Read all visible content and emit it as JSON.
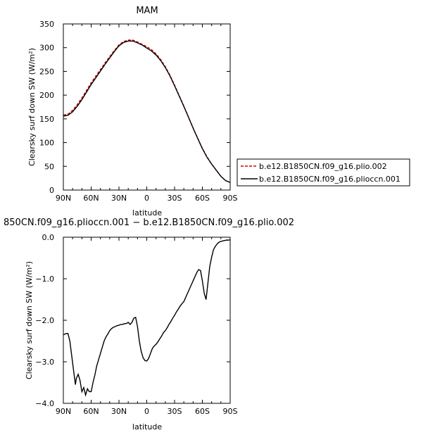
{
  "chart_data": [
    {
      "type": "line",
      "title": "MAM",
      "xlabel": "latitude",
      "ylabel": "Clearsky surf down SW (W/m²)",
      "xlim": [
        90,
        -90
      ],
      "ylim": [
        0,
        350
      ],
      "xticks": [
        90,
        60,
        30,
        0,
        -30,
        -60,
        -90
      ],
      "xtick_labels": [
        "90N",
        "60N",
        "30N",
        "0",
        "30S",
        "60S",
        "90S"
      ],
      "yticks": [
        0,
        50,
        100,
        150,
        200,
        250,
        300,
        350
      ],
      "ytick_labels": [
        "0",
        "50",
        "100",
        "150",
        "200",
        "250",
        "300",
        "350"
      ],
      "legend_position": "right",
      "series": [
        {
          "name": "b.e12.B1850CN.f09_g16.plio.002",
          "color": "#cc0000",
          "dash": "dashed",
          "x": [
            90,
            85,
            80,
            75,
            70,
            65,
            60,
            55,
            50,
            45,
            40,
            35,
            30,
            25,
            20,
            15,
            10,
            5,
            0,
            -5,
            -10,
            -15,
            -20,
            -25,
            -30,
            -35,
            -40,
            -45,
            -50,
            -55,
            -60,
            -65,
            -70,
            -75,
            -80,
            -85,
            -90
          ],
          "y": [
            158,
            160,
            168,
            180,
            194,
            210,
            226,
            240,
            254,
            268,
            281,
            294,
            306,
            313,
            316,
            316,
            312,
            307,
            302,
            296,
            287,
            275,
            260,
            242,
            221,
            199,
            177,
            154,
            131,
            109,
            88,
            70,
            55,
            42,
            29,
            20,
            16
          ]
        },
        {
          "name": "b.e12.B1850CN.f09_g16.plioccn.001",
          "color": "#000000",
          "dash": "solid",
          "x": [
            90,
            85,
            80,
            75,
            70,
            65,
            60,
            55,
            50,
            45,
            40,
            35,
            30,
            25,
            20,
            15,
            10,
            5,
            0,
            -5,
            -10,
            -15,
            -20,
            -25,
            -30,
            -35,
            -40,
            -45,
            -50,
            -55,
            -60,
            -65,
            -70,
            -75,
            -80,
            -85,
            -90
          ],
          "y": [
            155.7,
            157.7,
            164.8,
            176.5,
            190.6,
            206.3,
            222.3,
            236.4,
            250.6,
            264.9,
            278.5,
            291.8,
            303.8,
            310.9,
            313.9,
            314,
            310.1,
            305.7,
            299.1,
            293.2,
            284.5,
            272.9,
            258.3,
            240.6,
            219.8,
            198,
            176.2,
            153.3,
            130.5,
            108.5,
            87.2,
            69.1,
            54.7,
            41.8,
            28.9,
            19.9,
            15.9
          ]
        }
      ]
    },
    {
      "type": "line",
      "title": "850CN.f09_g16.plioccn.001 − b.e12.B1850CN.f09_g16.plio.002",
      "xlabel": "latitude",
      "ylabel": "Clearsky surf down SW (W/m²)",
      "xlim": [
        90,
        -90
      ],
      "ylim": [
        -4.0,
        0.0
      ],
      "xticks": [
        90,
        60,
        30,
        0,
        -30,
        -60,
        -90
      ],
      "xtick_labels": [
        "90N",
        "60N",
        "30N",
        "0",
        "30S",
        "60S",
        "90S"
      ],
      "yticks": [
        -4,
        -3,
        -2,
        -1,
        0
      ],
      "ytick_labels": [
        "−4.0",
        "−3.0",
        "−2.0",
        "−1.0",
        "0.0"
      ],
      "series": [
        {
          "color": "#000000",
          "dash": "solid",
          "x": [
            90,
            87,
            85,
            83,
            81,
            79,
            77,
            76,
            74,
            72,
            70,
            68,
            66,
            64,
            62,
            60,
            58,
            56,
            54,
            52,
            50,
            48,
            46,
            44,
            42,
            40,
            38,
            36,
            34,
            32,
            30,
            28,
            26,
            24,
            22,
            20,
            18,
            16,
            14,
            12,
            10,
            8,
            6,
            4,
            2,
            0,
            -2,
            -4,
            -6,
            -8,
            -10,
            -12,
            -14,
            -16,
            -18,
            -20,
            -22,
            -24,
            -26,
            -28,
            -30,
            -32,
            -34,
            -36,
            -38,
            -40,
            -42,
            -44,
            -46,
            -48,
            -50,
            -52,
            -54,
            -56,
            -58,
            -60,
            -62,
            -64,
            -66,
            -68,
            -70,
            -72,
            -74,
            -76,
            -78,
            -80,
            -82,
            -84,
            -86,
            -88,
            -90
          ],
          "y": [
            -2.35,
            -2.32,
            -2.32,
            -2.5,
            -2.85,
            -3.2,
            -3.55,
            -3.4,
            -3.3,
            -3.45,
            -3.72,
            -3.62,
            -3.8,
            -3.65,
            -3.72,
            -3.72,
            -3.5,
            -3.32,
            -3.1,
            -2.95,
            -2.8,
            -2.65,
            -2.5,
            -2.4,
            -2.33,
            -2.25,
            -2.2,
            -2.17,
            -2.15,
            -2.13,
            -2.12,
            -2.1,
            -2.1,
            -2.08,
            -2.08,
            -2.05,
            -2.1,
            -2.05,
            -1.95,
            -1.93,
            -2.15,
            -2.5,
            -2.75,
            -2.9,
            -2.97,
            -2.98,
            -2.92,
            -2.8,
            -2.68,
            -2.62,
            -2.58,
            -2.52,
            -2.45,
            -2.38,
            -2.3,
            -2.25,
            -2.18,
            -2.1,
            -2.03,
            -1.95,
            -1.88,
            -1.8,
            -1.73,
            -1.66,
            -1.6,
            -1.55,
            -1.45,
            -1.35,
            -1.25,
            -1.15,
            -1.05,
            -0.95,
            -0.85,
            -0.78,
            -0.8,
            -1.05,
            -1.35,
            -1.5,
            -1.1,
            -0.7,
            -0.48,
            -0.3,
            -0.22,
            -0.16,
            -0.12,
            -0.1,
            -0.09,
            -0.08,
            -0.07,
            -0.07,
            -0.06
          ]
        }
      ]
    }
  ]
}
